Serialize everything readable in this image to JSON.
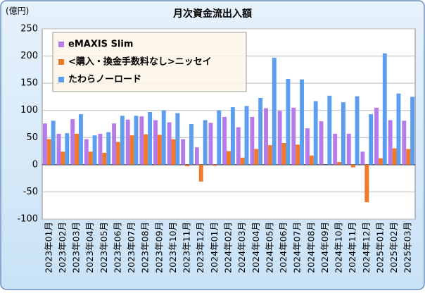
{
  "chart_data": {
    "type": "bar",
    "title": "月次資金流出入額",
    "y_label": "(億円)",
    "categories": [
      "2023年01月",
      "2023年02月",
      "2023年03月",
      "2023年04月",
      "2023年05月",
      "2023年06月",
      "2023年07月",
      "2023年08月",
      "2023年09月",
      "2023年10月",
      "2023年11月",
      "2023年12月",
      "2024年01月",
      "2024年02月",
      "2024年03月",
      "2024年04月",
      "2024年05月",
      "2024年06月",
      "2024年07月",
      "2024年08月",
      "2024年09月",
      "2024年10月",
      "2024年11月",
      "2024年12月",
      "2025年01月",
      "2025年02月",
      "2025年03月"
    ],
    "series": [
      {
        "name": "eMAXIS Slim",
        "color": "#b57be8",
        "values": [
          76,
          57,
          84,
          47,
          57,
          76,
          83,
          89,
          82,
          78,
          47,
          32,
          77,
          88,
          69,
          88,
          104,
          99,
          105,
          67,
          80,
          57,
          57,
          24,
          105,
          82,
          81
        ]
      },
      {
        "name": "<購入・換金手数料なし>ニッセイ",
        "color": "#f07a2a",
        "values": [
          47,
          24,
          57,
          24,
          22,
          42,
          54,
          56,
          55,
          47,
          -3,
          -31,
          -2,
          25,
          13,
          29,
          36,
          40,
          37,
          17,
          0,
          5,
          -5,
          -69,
          12,
          30,
          29
        ]
      },
      {
        "name": "たわらノーロード",
        "color": "#5b9ef0",
        "values": [
          81,
          58,
          93,
          54,
          60,
          90,
          90,
          97,
          100,
          95,
          75,
          82,
          100,
          106,
          108,
          123,
          197,
          158,
          157,
          117,
          127,
          115,
          126,
          93,
          205,
          131,
          125
        ]
      }
    ],
    "ylim": [
      -100,
      250
    ],
    "yticks": [
      -100,
      -50,
      0,
      50,
      100,
      150,
      200,
      250
    ],
    "grid": true,
    "legend": "upper left"
  }
}
